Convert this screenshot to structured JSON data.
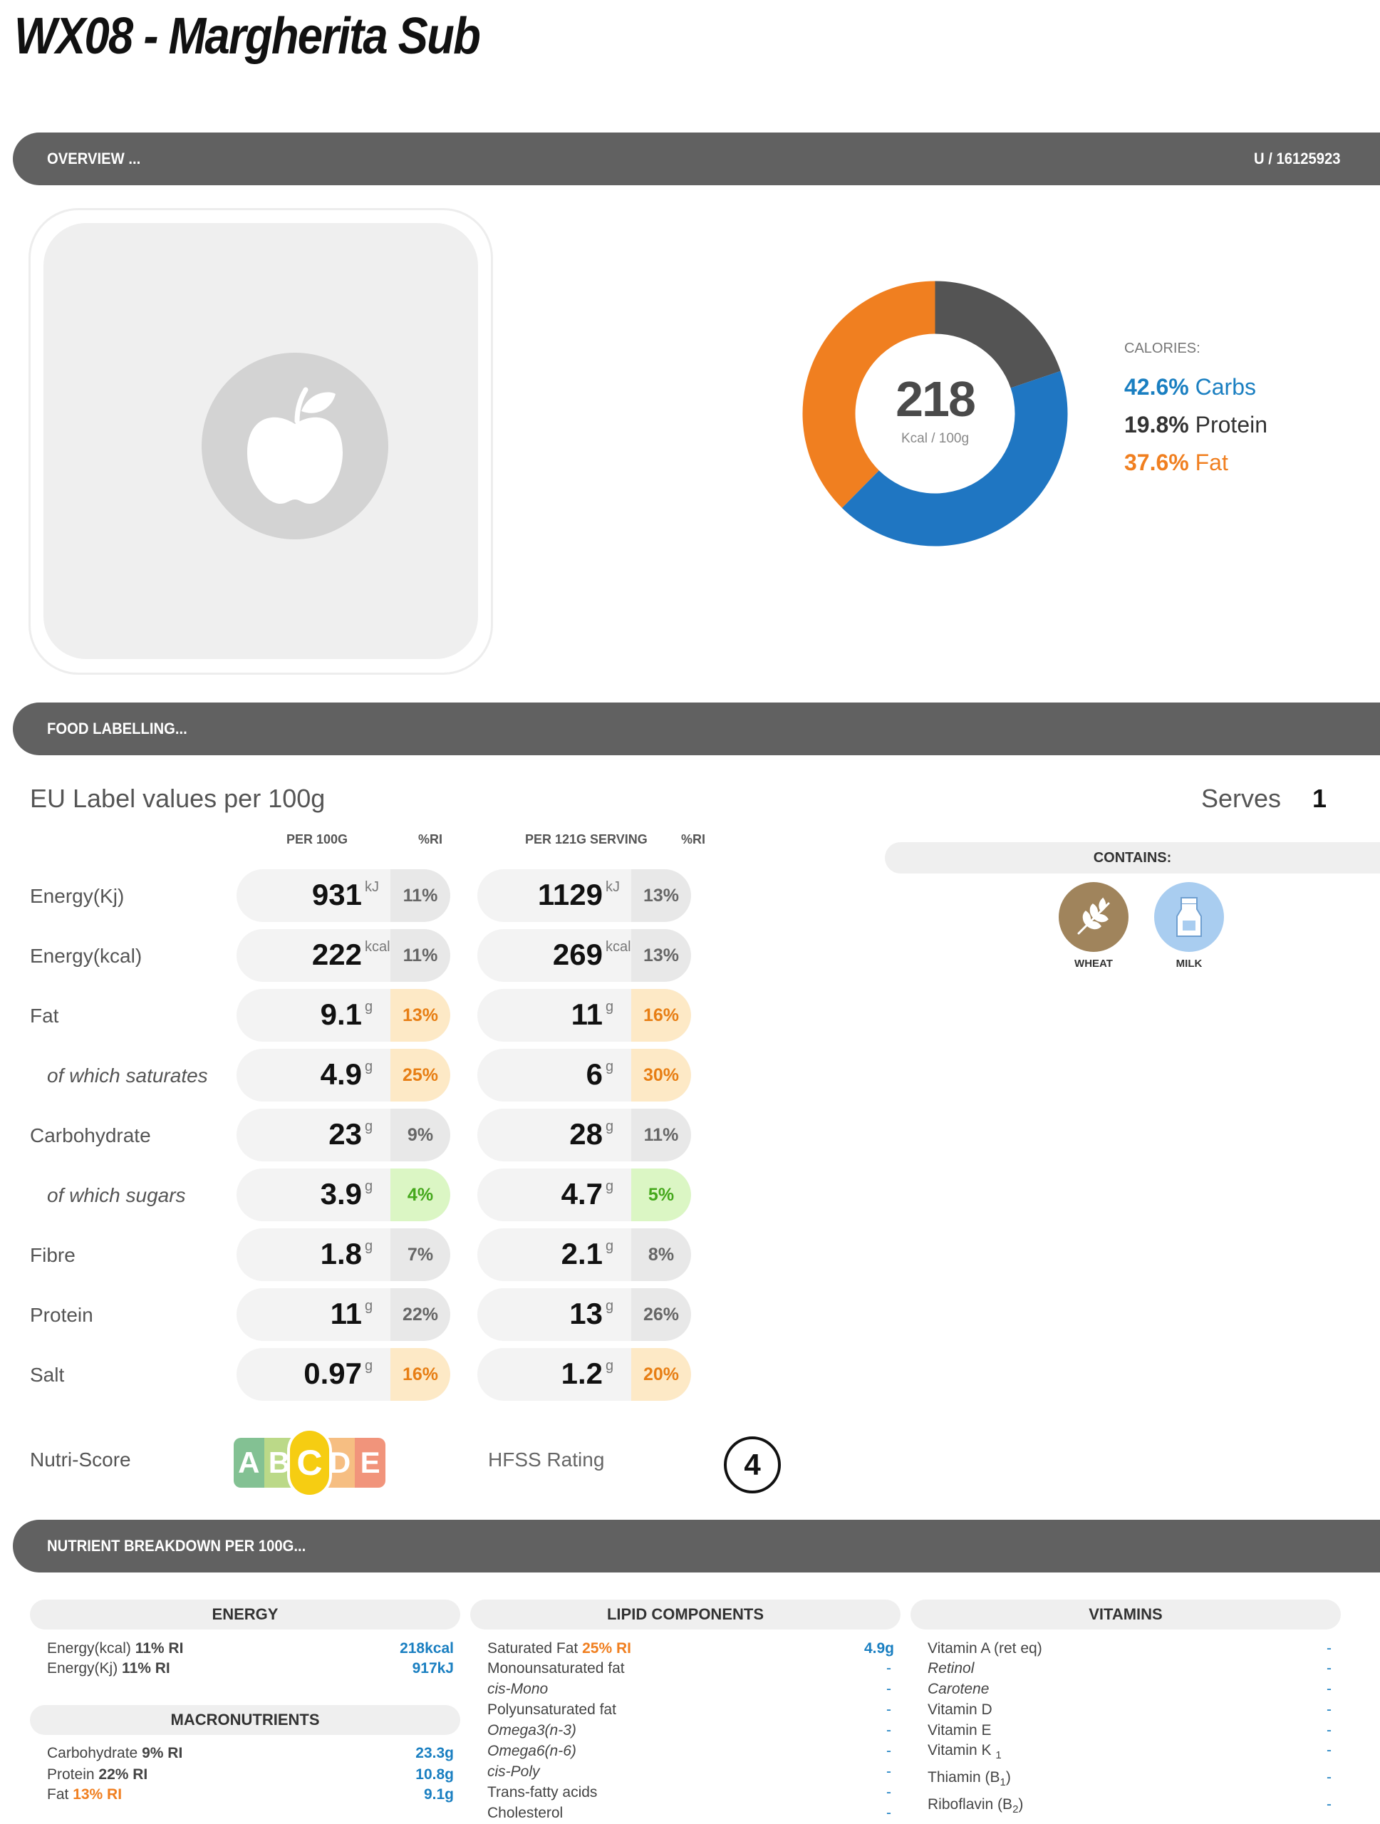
{
  "title": "WX08 - Margherita Sub",
  "overview": {
    "label": "OVERVIEW ...",
    "code": "U / 16125923"
  },
  "calories": {
    "value": "218",
    "unit": "Kcal / 100g",
    "heading": "CALORIES:",
    "carbs_pct": "42.6%",
    "carbs_label": "Carbs",
    "protein_pct": "19.8%",
    "protein_label": "Protein",
    "fat_pct": "37.6%",
    "fat_label": "Fat"
  },
  "chart_data": {
    "type": "pie",
    "categories": [
      "Carbs",
      "Protein",
      "Fat"
    ],
    "values": [
      42.6,
      19.8,
      37.6
    ],
    "colors": {
      "carbs": "#1f76c2",
      "protein": "#545454",
      "fat": "#f07f20"
    }
  },
  "food_labelling": {
    "label": "FOOD LABELLING..."
  },
  "eu_label": {
    "title": "EU Label values per 100g",
    "serves_label": "Serves",
    "serves_value": "1",
    "col_per100": "PER 100G",
    "col_ri1": "%RI",
    "col_serving": "PER 121G SERVING",
    "col_ri2": "%RI",
    "rows": [
      {
        "label": "Energy(Kj)",
        "v100": "931",
        "u": "kJ",
        "ri100": "11%",
        "vs": "1129",
        "ris": "13%",
        "c100": "grey",
        "cs": "grey"
      },
      {
        "label": "Energy(kcal)",
        "v100": "222",
        "u": "kcal",
        "ri100": "11%",
        "vs": "269",
        "ris": "13%",
        "c100": "grey",
        "cs": "grey"
      },
      {
        "label": "Fat",
        "v100": "9.1",
        "u": "g",
        "ri100": "13%",
        "vs": "11",
        "ris": "16%",
        "c100": "amber",
        "cs": "amber"
      },
      {
        "label": "of which saturates",
        "v100": "4.9",
        "u": "g",
        "ri100": "25%",
        "vs": "6",
        "ris": "30%",
        "c100": "amber",
        "cs": "amber"
      },
      {
        "label": "Carbohydrate",
        "v100": "23",
        "u": "g",
        "ri100": "9%",
        "vs": "28",
        "ris": "11%",
        "c100": "grey",
        "cs": "grey"
      },
      {
        "label": "of which sugars",
        "v100": "3.9",
        "u": "g",
        "ri100": "4%",
        "vs": "4.7",
        "ris": "5%",
        "c100": "green",
        "cs": "green"
      },
      {
        "label": "Fibre",
        "v100": "1.8",
        "u": "g",
        "ri100": "7%",
        "vs": "2.1",
        "ris": "8%",
        "c100": "grey",
        "cs": "grey"
      },
      {
        "label": "Protein",
        "v100": "11",
        "u": "g",
        "ri100": "22%",
        "vs": "13",
        "ris": "26%",
        "c100": "grey",
        "cs": "grey"
      },
      {
        "label": "Salt",
        "v100": "0.97",
        "u": "g",
        "ri100": "16%",
        "vs": "1.2",
        "ris": "20%",
        "c100": "amber",
        "cs": "amber"
      }
    ]
  },
  "contains": {
    "heading": "CONTAINS:",
    "items": [
      {
        "label": "WHEAT",
        "icon": "wheat-icon",
        "color": "#a0845c"
      },
      {
        "label": "MILK",
        "icon": "milk-icon",
        "color": "#a9cdf0"
      }
    ]
  },
  "scores": {
    "nutri_label": "Nutri-Score",
    "nutri_letters": [
      "A",
      "B",
      "C",
      "D",
      "E"
    ],
    "nutri_selected": "C",
    "hfss_label": "HFSS Rating",
    "hfss_value": "4"
  },
  "breakdown": {
    "label": "NUTRIENT BREAKDOWN PER 100G...",
    "energy": {
      "heading": "ENERGY",
      "lines": [
        {
          "label": "Energy(kcal)",
          "ri": "11% RI",
          "value": "218kcal"
        },
        {
          "label": "Energy(Kj)",
          "ri": "11% RI",
          "value": "917kJ"
        }
      ]
    },
    "macros": {
      "heading": "MACRONUTRIENTS",
      "lines": [
        {
          "label": "Carbohydrate",
          "ri": "9% RI",
          "value": "23.3g"
        },
        {
          "label": "Protein",
          "ri": "22% RI",
          "value": "10.8g"
        },
        {
          "label": "Fat",
          "ri": "13% RI",
          "value": "9.1g"
        }
      ]
    },
    "lipids": {
      "heading": "LIPID COMPONENTS",
      "saturated": {
        "label": "Saturated Fat",
        "ri": "25% RI",
        "value": "4.9g"
      },
      "lines": [
        "Monounsaturated fat",
        "cis-Mono",
        "Polyunsaturated fat",
        "Omega3(n-3)",
        "Omega6(n-6)",
        "cis-Poly",
        "Trans-fatty acids",
        "Cholesterol"
      ],
      "dash": "-"
    },
    "vitamins": {
      "heading": "VITAMINS",
      "lines": [
        "Vitamin A (ret eq)",
        "Retinol",
        "Carotene",
        "Vitamin D",
        "Vitamin E",
        "Vitamin K",
        "Thiamin (B",
        "Riboflavin (B"
      ],
      "vitk_sub": "1",
      "b1_sub": "1",
      "b2_sub": "2",
      "close": ")",
      "dash": "-"
    }
  }
}
